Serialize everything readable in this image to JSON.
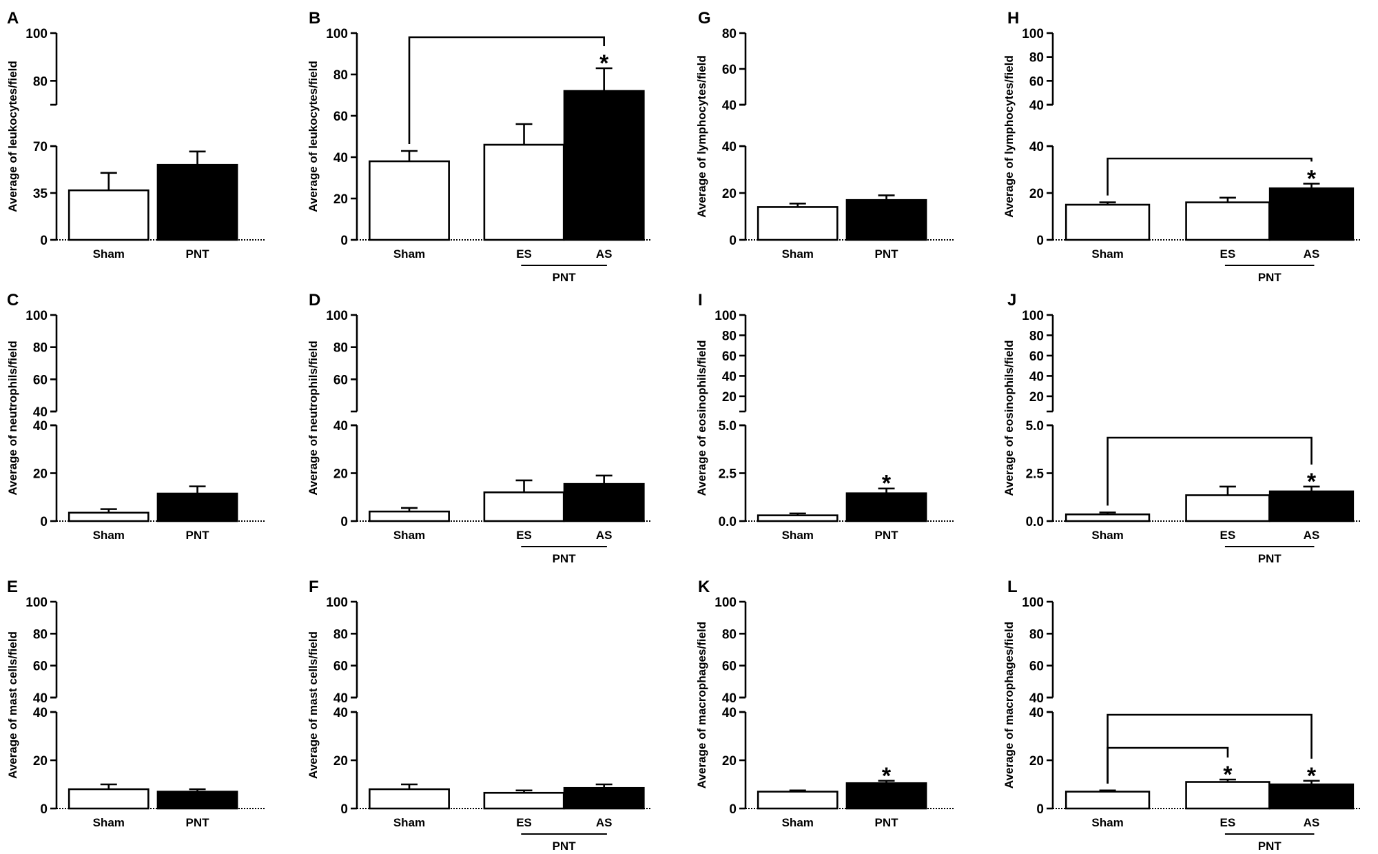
{
  "chart_data": [
    {
      "id": "A",
      "type": "bar",
      "ylabel": "Average of leukocytes/field",
      "axis": {
        "lower": {
          "ticks": [
            0,
            35,
            70
          ],
          "max": 70
        },
        "upper": {
          "ticks": [
            80,
            100
          ],
          "min": 70,
          "max": 100
        }
      },
      "categories": [
        "Sham",
        "PNT"
      ],
      "values": [
        37,
        56
      ],
      "errors": [
        13,
        10
      ],
      "fills": [
        "#ffffff",
        "#000000"
      ],
      "stars": [],
      "brackets": [],
      "group": null
    },
    {
      "id": "B",
      "type": "bar",
      "ylabel": "Average of leukocytes/field",
      "axis": {
        "lower": {
          "ticks": [
            0,
            20,
            40,
            60,
            80,
            100
          ],
          "max": 100
        },
        "upper": null
      },
      "categories": [
        "Sham",
        "ES",
        "AS"
      ],
      "values": [
        38,
        46,
        72
      ],
      "errors": [
        5,
        10,
        11
      ],
      "fills": [
        "#ffffff",
        "#ffffff",
        "#000000"
      ],
      "stars": [
        "",
        "",
        "*"
      ],
      "brackets": [
        {
          "from": 0,
          "to": 2,
          "level": 0
        }
      ],
      "group": {
        "label": "PNT",
        "from": 1,
        "to": 2
      }
    },
    {
      "id": "C",
      "type": "bar",
      "ylabel": "Average of neutrophils/field",
      "axis": {
        "lower": {
          "ticks": [
            0,
            20,
            40
          ],
          "max": 40
        },
        "upper": {
          "ticks": [
            40,
            60,
            80,
            100
          ],
          "min": 40,
          "max": 100
        }
      },
      "categories": [
        "Sham",
        "PNT"
      ],
      "values": [
        3.5,
        11.5
      ],
      "errors": [
        1.5,
        3
      ],
      "fills": [
        "#ffffff",
        "#000000"
      ],
      "stars": [],
      "brackets": [],
      "group": null
    },
    {
      "id": "D",
      "type": "bar",
      "ylabel": "Average of neutrophils/field",
      "axis": {
        "lower": {
          "ticks": [
            0,
            20,
            40
          ],
          "max": 40
        },
        "upper": {
          "ticks": [
            60,
            80,
            100
          ],
          "min": 40,
          "max": 100
        }
      },
      "categories": [
        "Sham",
        "ES",
        "AS"
      ],
      "values": [
        4,
        12,
        15.5
      ],
      "errors": [
        1.5,
        5,
        3.5
      ],
      "fills": [
        "#ffffff",
        "#ffffff",
        "#000000"
      ],
      "stars": [],
      "brackets": [],
      "group": {
        "label": "PNT",
        "from": 1,
        "to": 2
      }
    },
    {
      "id": "E",
      "type": "bar",
      "ylabel": "Average of mast cells/field",
      "axis": {
        "lower": {
          "ticks": [
            0,
            20,
            40
          ],
          "max": 40
        },
        "upper": {
          "ticks": [
            40,
            60,
            80,
            100
          ],
          "min": 40,
          "max": 100
        }
      },
      "categories": [
        "Sham",
        "PNT"
      ],
      "values": [
        8,
        7
      ],
      "errors": [
        2,
        1
      ],
      "fills": [
        "#ffffff",
        "#000000"
      ],
      "stars": [],
      "brackets": [],
      "group": null
    },
    {
      "id": "F",
      "type": "bar",
      "ylabel": "Average of mast cells/field",
      "axis": {
        "lower": {
          "ticks": [
            0,
            20,
            40
          ],
          "max": 40
        },
        "upper": {
          "ticks": [
            40,
            60,
            80,
            100
          ],
          "min": 40,
          "max": 100
        }
      },
      "categories": [
        "Sham",
        "ES",
        "AS"
      ],
      "values": [
        8,
        6.5,
        8.5
      ],
      "errors": [
        2,
        1,
        1.5
      ],
      "fills": [
        "#ffffff",
        "#ffffff",
        "#000000"
      ],
      "stars": [],
      "brackets": [],
      "group": {
        "label": "PNT",
        "from": 1,
        "to": 2
      }
    },
    {
      "id": "G",
      "type": "bar",
      "ylabel": "Average of lymphocytes/field",
      "axis": {
        "lower": {
          "ticks": [
            0,
            20,
            40
          ],
          "max": 40
        },
        "upper": {
          "ticks": [
            40,
            60,
            80
          ],
          "min": 40,
          "max": 80
        }
      },
      "categories": [
        "Sham",
        "PNT"
      ],
      "values": [
        14,
        17
      ],
      "errors": [
        1.5,
        2
      ],
      "fills": [
        "#ffffff",
        "#000000"
      ],
      "stars": [],
      "brackets": [],
      "group": null
    },
    {
      "id": "H",
      "type": "bar",
      "ylabel": "Average of lymphocytes/field",
      "axis": {
        "lower": {
          "ticks": [
            0,
            20,
            40
          ],
          "max": 40
        },
        "upper": {
          "ticks": [
            40,
            60,
            80,
            100
          ],
          "min": 40,
          "max": 100
        }
      },
      "categories": [
        "Sham",
        "ES",
        "AS"
      ],
      "values": [
        15,
        16,
        22
      ],
      "errors": [
        1,
        2,
        2
      ],
      "fills": [
        "#ffffff",
        "#ffffff",
        "#000000"
      ],
      "stars": [
        "",
        "",
        "*"
      ],
      "brackets": [
        {
          "from": 0,
          "to": 2,
          "level": 0
        }
      ],
      "group": {
        "label": "PNT",
        "from": 1,
        "to": 2
      }
    },
    {
      "id": "I",
      "type": "bar",
      "ylabel": "Average of eosinophils/field",
      "axis": {
        "lower": {
          "ticks": [
            0.0,
            2.5,
            5.0
          ],
          "labels": [
            "0.0",
            "2.5",
            "5.0"
          ],
          "max": 5
        },
        "upper": {
          "ticks": [
            20,
            40,
            60,
            80,
            100
          ],
          "min": 5,
          "max": 100
        }
      },
      "categories": [
        "Sham",
        "PNT"
      ],
      "values": [
        0.3,
        1.45
      ],
      "errors": [
        0.1,
        0.25
      ],
      "fills": [
        "#ffffff",
        "#000000"
      ],
      "stars": [
        "",
        "*"
      ],
      "brackets": [],
      "group": null
    },
    {
      "id": "J",
      "type": "bar",
      "ylabel": "Average of eosinophils/field",
      "axis": {
        "lower": {
          "ticks": [
            0.0,
            2.5,
            5.0
          ],
          "labels": [
            "0.0",
            "2.5",
            "5.0"
          ],
          "max": 5
        },
        "upper": {
          "ticks": [
            20,
            40,
            60,
            80,
            100
          ],
          "min": 5,
          "max": 100
        }
      },
      "categories": [
        "Sham",
        "ES",
        "AS"
      ],
      "values": [
        0.35,
        1.35,
        1.55
      ],
      "errors": [
        0.1,
        0.45,
        0.25
      ],
      "fills": [
        "#ffffff",
        "#ffffff",
        "#000000"
      ],
      "stars": [
        "",
        "",
        "*"
      ],
      "brackets": [
        {
          "from": 0,
          "to": 2,
          "level": 0
        }
      ],
      "group": {
        "label": "PNT",
        "from": 1,
        "to": 2
      }
    },
    {
      "id": "K",
      "type": "bar",
      "ylabel": "Average of macrophages/field",
      "axis": {
        "lower": {
          "ticks": [
            0,
            20,
            40
          ],
          "max": 40
        },
        "upper": {
          "ticks": [
            40,
            60,
            80,
            100
          ],
          "min": 40,
          "max": 100
        }
      },
      "categories": [
        "Sham",
        "PNT"
      ],
      "values": [
        7,
        10.5
      ],
      "errors": [
        0.5,
        1
      ],
      "fills": [
        "#ffffff",
        "#000000"
      ],
      "stars": [
        "",
        "*"
      ],
      "brackets": [],
      "group": null
    },
    {
      "id": "L",
      "type": "bar",
      "ylabel": "Average of macrophages/field",
      "axis": {
        "lower": {
          "ticks": [
            0,
            20,
            40
          ],
          "max": 40
        },
        "upper": {
          "ticks": [
            40,
            60,
            80,
            100
          ],
          "min": 40,
          "max": 100
        }
      },
      "categories": [
        "Sham",
        "ES",
        "AS"
      ],
      "values": [
        7,
        11,
        10
      ],
      "errors": [
        0.5,
        1,
        1.5
      ],
      "fills": [
        "#ffffff",
        "#ffffff",
        "#000000"
      ],
      "stars": [
        "",
        "*",
        "*"
      ],
      "brackets": [
        {
          "from": 0,
          "to": 2,
          "level": 1
        },
        {
          "from": 0,
          "to": 1,
          "level": 0
        }
      ],
      "group": {
        "label": "PNT",
        "from": 1,
        "to": 2
      }
    }
  ]
}
